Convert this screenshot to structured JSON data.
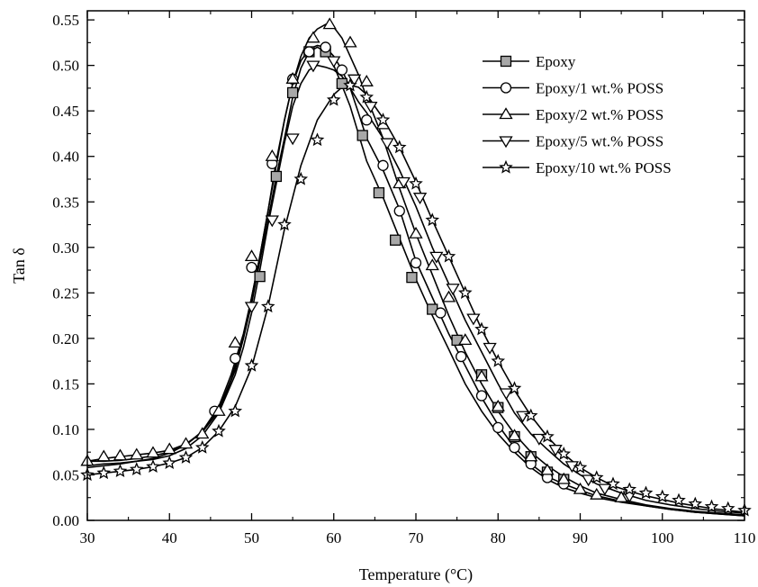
{
  "chart_data": {
    "type": "line",
    "title": "",
    "xlabel": "Temperature (°C)",
    "ylabel": "Tan δ",
    "xlim": [
      30,
      110
    ],
    "ylim": [
      0,
      0.56
    ],
    "x_ticks": [
      30,
      40,
      50,
      60,
      70,
      80,
      90,
      100,
      110
    ],
    "x_tick_labels": [
      "30",
      "40",
      "50",
      "60",
      "70",
      "80",
      "90",
      "100",
      "110"
    ],
    "y_ticks": [
      0,
      0.05,
      0.1,
      0.15,
      0.2,
      0.25,
      0.3,
      0.35,
      0.4,
      0.45,
      0.5,
      0.55
    ],
    "y_tick_labels": [
      "0.00",
      "0.05",
      "0.10",
      "0.15",
      "0.20",
      "0.25",
      "0.30",
      "0.35",
      "0.40",
      "0.45",
      "0.50",
      "0.55"
    ],
    "grid": false,
    "legend_position": "top-right",
    "series": [
      {
        "name": "Epoxy",
        "marker": "square",
        "x": [
          30,
          32,
          34,
          36,
          38,
          40,
          42,
          44,
          46,
          47.5,
          49,
          50,
          51,
          52,
          53,
          54,
          55,
          56,
          57,
          58,
          59,
          60,
          61,
          62,
          63,
          64,
          66,
          68,
          70,
          72,
          74,
          76,
          78,
          80,
          82,
          84,
          86,
          88,
          90,
          92,
          95,
          98,
          101,
          104,
          107,
          110
        ],
        "y": [
          0.065,
          0.065,
          0.066,
          0.068,
          0.071,
          0.075,
          0.083,
          0.097,
          0.122,
          0.155,
          0.2,
          0.238,
          0.285,
          0.33,
          0.378,
          0.42,
          0.465,
          0.497,
          0.515,
          0.52,
          0.515,
          0.5,
          0.478,
          0.455,
          0.425,
          0.395,
          0.355,
          0.31,
          0.265,
          0.225,
          0.188,
          0.15,
          0.12,
          0.095,
          0.075,
          0.058,
          0.045,
          0.036,
          0.03,
          0.025,
          0.02,
          0.016,
          0.012,
          0.009,
          0.007,
          0.005
        ],
        "marker_x": [
          51,
          53,
          55,
          57,
          59,
          61,
          63.5,
          65.5,
          67.5,
          69.5,
          72,
          75,
          78,
          80,
          82,
          84,
          86,
          88
        ],
        "marker_y": [
          0.268,
          0.378,
          0.47,
          0.515,
          0.515,
          0.48,
          0.423,
          0.36,
          0.308,
          0.267,
          0.232,
          0.198,
          0.16,
          0.124,
          0.092,
          0.07,
          0.053,
          0.045
        ]
      },
      {
        "name": "Epoxy/1 wt.% POSS",
        "marker": "circle",
        "x": [
          30,
          32,
          34,
          36,
          38,
          40,
          42,
          44,
          46,
          47.5,
          49,
          50,
          51,
          52,
          53,
          54,
          55,
          56,
          57,
          58,
          59,
          60,
          61,
          62,
          63,
          64,
          66,
          68,
          70,
          72,
          74,
          76,
          78,
          80,
          82,
          84,
          86,
          88,
          90,
          92,
          95,
          98,
          101,
          104,
          107,
          110
        ],
        "y": [
          0.058,
          0.06,
          0.062,
          0.065,
          0.068,
          0.074,
          0.083,
          0.098,
          0.125,
          0.16,
          0.205,
          0.245,
          0.29,
          0.34,
          0.395,
          0.44,
          0.48,
          0.505,
          0.518,
          0.522,
          0.52,
          0.51,
          0.495,
          0.475,
          0.448,
          0.42,
          0.385,
          0.342,
          0.285,
          0.245,
          0.205,
          0.17,
          0.135,
          0.105,
          0.08,
          0.062,
          0.048,
          0.04,
          0.033,
          0.027,
          0.021,
          0.016,
          0.012,
          0.009,
          0.007,
          0.005
        ],
        "marker_x": [
          45.5,
          48,
          50,
          52.5,
          55,
          57,
          59,
          61,
          64,
          66,
          68,
          70,
          73,
          75.5,
          78,
          80,
          82,
          84,
          86,
          88
        ],
        "marker_y": [
          0.12,
          0.178,
          0.278,
          0.392,
          0.485,
          0.515,
          0.52,
          0.495,
          0.44,
          0.39,
          0.34,
          0.283,
          0.228,
          0.18,
          0.137,
          0.102,
          0.08,
          0.062,
          0.047,
          0.04
        ]
      },
      {
        "name": "Epoxy/2 wt.% POSS",
        "marker": "triangle-up",
        "x": [
          30,
          32,
          34,
          36,
          38,
          40,
          42,
          44,
          46,
          48,
          49,
          50,
          51,
          52,
          53,
          54,
          55,
          56,
          57,
          58,
          59,
          60,
          61,
          62,
          63,
          64,
          66,
          68,
          70,
          72,
          74,
          76,
          78,
          80,
          82,
          84,
          86,
          88,
          90,
          92,
          95,
          98,
          101,
          104,
          107,
          110
        ],
        "y": [
          0.065,
          0.068,
          0.07,
          0.072,
          0.074,
          0.077,
          0.084,
          0.097,
          0.12,
          0.165,
          0.2,
          0.245,
          0.29,
          0.34,
          0.39,
          0.44,
          0.48,
          0.51,
          0.53,
          0.54,
          0.545,
          0.542,
          0.53,
          0.51,
          0.49,
          0.465,
          0.42,
          0.365,
          0.315,
          0.27,
          0.225,
          0.185,
          0.15,
          0.12,
          0.095,
          0.075,
          0.06,
          0.048,
          0.038,
          0.03,
          0.023,
          0.017,
          0.013,
          0.01,
          0.008,
          0.006
        ],
        "marker_x": [
          30,
          32,
          34,
          36,
          38,
          40,
          42,
          44,
          46,
          48,
          50,
          52.5,
          55,
          57.5,
          59.5,
          62,
          64,
          66,
          68,
          70,
          72,
          74,
          76,
          78,
          80,
          82,
          84,
          86,
          88,
          90,
          92,
          95
        ],
        "marker_y": [
          0.065,
          0.07,
          0.071,
          0.072,
          0.074,
          0.078,
          0.084,
          0.095,
          0.12,
          0.195,
          0.29,
          0.4,
          0.485,
          0.53,
          0.545,
          0.525,
          0.482,
          0.435,
          0.37,
          0.315,
          0.28,
          0.245,
          0.198,
          0.158,
          0.125,
          0.093,
          0.07,
          0.055,
          0.045,
          0.034,
          0.028,
          0.025
        ]
      },
      {
        "name": "Epoxy/5 wt.% POSS",
        "marker": "triangle-down",
        "x": [
          30,
          32,
          34,
          36,
          38,
          40,
          42,
          44,
          46,
          48,
          49,
          50,
          51,
          52,
          53,
          54,
          55,
          56,
          57,
          58,
          59,
          60,
          61,
          62,
          63,
          64,
          66,
          68,
          70,
          72,
          74,
          76,
          78,
          80,
          82,
          84,
          86,
          88,
          90,
          92,
          95,
          98,
          101,
          104,
          107,
          110
        ],
        "y": [
          0.06,
          0.062,
          0.063,
          0.065,
          0.067,
          0.071,
          0.079,
          0.093,
          0.118,
          0.16,
          0.19,
          0.228,
          0.275,
          0.325,
          0.37,
          0.415,
          0.455,
          0.48,
          0.495,
          0.5,
          0.498,
          0.495,
          0.488,
          0.475,
          0.46,
          0.448,
          0.42,
          0.385,
          0.345,
          0.3,
          0.26,
          0.22,
          0.185,
          0.15,
          0.118,
          0.095,
          0.078,
          0.062,
          0.05,
          0.04,
          0.03,
          0.022,
          0.017,
          0.013,
          0.01,
          0.008
        ],
        "marker_x": [
          50,
          52.5,
          55,
          57.5,
          60,
          62.5,
          64.5,
          66.5,
          68.5,
          70.5,
          72.5,
          74.5,
          77,
          79,
          81,
          83,
          85,
          87,
          89,
          91,
          93,
          96
        ],
        "marker_y": [
          0.235,
          0.33,
          0.42,
          0.5,
          0.505,
          0.485,
          0.455,
          0.415,
          0.372,
          0.355,
          0.29,
          0.255,
          0.222,
          0.19,
          0.14,
          0.115,
          0.09,
          0.078,
          0.06,
          0.045,
          0.035,
          0.027
        ]
      },
      {
        "name": "Epoxy/10 wt.% POSS",
        "marker": "star",
        "x": [
          30,
          32,
          34,
          36,
          38,
          40,
          42,
          44,
          46,
          48,
          50,
          52,
          54,
          56,
          58,
          60,
          61,
          62,
          63,
          64,
          66,
          68,
          70,
          72,
          74,
          76,
          78,
          80,
          82,
          84,
          86,
          88,
          90,
          92,
          94,
          96,
          98,
          100,
          102,
          104,
          106,
          108,
          110
        ],
        "y": [
          0.05,
          0.052,
          0.054,
          0.056,
          0.059,
          0.063,
          0.069,
          0.08,
          0.098,
          0.125,
          0.168,
          0.235,
          0.32,
          0.39,
          0.44,
          0.468,
          0.476,
          0.478,
          0.476,
          0.468,
          0.442,
          0.41,
          0.372,
          0.33,
          0.29,
          0.25,
          0.21,
          0.175,
          0.143,
          0.115,
          0.092,
          0.073,
          0.058,
          0.047,
          0.038,
          0.032,
          0.027,
          0.023,
          0.019,
          0.016,
          0.013,
          0.011,
          0.009
        ],
        "marker_x": [
          30,
          32,
          34,
          36,
          38,
          40,
          42,
          44,
          46,
          48,
          50,
          52,
          54,
          56,
          58,
          60,
          62,
          64,
          66,
          68,
          70,
          72,
          74,
          76,
          78,
          80,
          82,
          84,
          86,
          88,
          90,
          92,
          94,
          96,
          98,
          100,
          102,
          104,
          106,
          108,
          110
        ],
        "marker_y": [
          0.05,
          0.052,
          0.054,
          0.056,
          0.059,
          0.063,
          0.069,
          0.08,
          0.098,
          0.12,
          0.17,
          0.235,
          0.325,
          0.375,
          0.418,
          0.462,
          0.478,
          0.465,
          0.44,
          0.41,
          0.37,
          0.33,
          0.29,
          0.25,
          0.21,
          0.175,
          0.145,
          0.115,
          0.092,
          0.073,
          0.058,
          0.047,
          0.04,
          0.034,
          0.03,
          0.026,
          0.022,
          0.018,
          0.015,
          0.013,
          0.011
        ]
      }
    ]
  }
}
